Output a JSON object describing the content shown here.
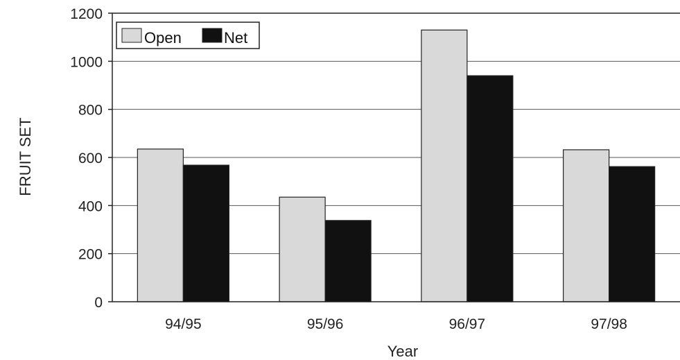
{
  "chart_data": {
    "type": "bar",
    "title": "",
    "xlabel": "Year",
    "ylabel": "FRUIT SET",
    "categories": [
      "94/95",
      "95/96",
      "96/97",
      "97/98"
    ],
    "series": [
      {
        "name": "Open",
        "values": [
          635,
          435,
          1130,
          632
        ],
        "color": "#d9d9d9"
      },
      {
        "name": "Net",
        "values": [
          568,
          338,
          940,
          562
        ],
        "color": "#111111"
      }
    ],
    "ylim": [
      0,
      1200
    ],
    "yticks": [
      "0",
      "200",
      "400",
      "600",
      "800",
      "1000",
      "1200"
    ],
    "grid": true,
    "legend_position": "top-left"
  }
}
